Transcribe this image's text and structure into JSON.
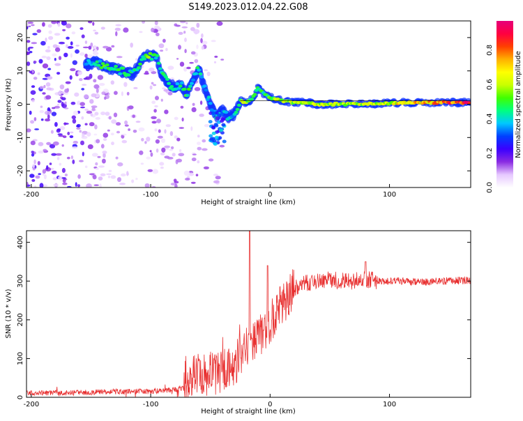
{
  "title": "S149.2023.012.04.22.G08",
  "chart_data": [
    {
      "type": "heatmap",
      "title": "",
      "xlabel": "Height of straight line (km)",
      "ylabel": "Frequency (Hz)",
      "xlim": [
        -204,
        168
      ],
      "ylim": [
        -25,
        25
      ],
      "x_ticks": [
        "-200",
        "-100",
        "0",
        "100"
      ],
      "y_ticks": [
        "20",
        "10",
        "0",
        "-10",
        "-20"
      ],
      "colorbar": {
        "label": "Normalized spectral amplitude",
        "range": [
          0,
          0.97
        ],
        "ticks": [
          "0.0",
          "0.2",
          "0.4",
          "0.6",
          "0.8"
        ],
        "colormap": [
          "#ffffff",
          "#e6c8ff",
          "#8a2be2",
          "#3a00ff",
          "#0040ff",
          "#00c8ff",
          "#00ff80",
          "#40ff00",
          "#c8ff00",
          "#ffff00",
          "#ffb000",
          "#ff4000",
          "#ff0040",
          "#e6007a"
        ]
      },
      "ridge": [
        {
          "x": -155,
          "y": 12,
          "a": 0.35
        },
        {
          "x": -145,
          "y": 12.5,
          "a": 0.45
        },
        {
          "x": -135,
          "y": 11,
          "a": 0.55
        },
        {
          "x": -125,
          "y": 10,
          "a": 0.5
        },
        {
          "x": -115,
          "y": 9,
          "a": 0.45
        },
        {
          "x": -105,
          "y": 14.5,
          "a": 0.55
        },
        {
          "x": -95,
          "y": 14.5,
          "a": 0.5
        },
        {
          "x": -92,
          "y": 10,
          "a": 0.45
        },
        {
          "x": -85,
          "y": 6,
          "a": 0.5
        },
        {
          "x": -80,
          "y": 5,
          "a": 0.5
        },
        {
          "x": -75,
          "y": 6,
          "a": 0.45
        },
        {
          "x": -70,
          "y": 3,
          "a": 0.5
        },
        {
          "x": -65,
          "y": 7,
          "a": 0.45
        },
        {
          "x": -60,
          "y": 11,
          "a": 0.45
        },
        {
          "x": -55,
          "y": 5,
          "a": 0.4
        },
        {
          "x": -50,
          "y": 0,
          "a": 0.4
        },
        {
          "x": -45,
          "y": -4,
          "a": 0.4
        },
        {
          "x": -40,
          "y": -2,
          "a": 0.4
        },
        {
          "x": -35,
          "y": -4,
          "a": 0.45
        },
        {
          "x": -30,
          "y": -3,
          "a": 0.4
        },
        {
          "x": -25,
          "y": 1,
          "a": 0.6
        },
        {
          "x": -20,
          "y": 0.5,
          "a": 0.65
        },
        {
          "x": -15,
          "y": 1.5,
          "a": 0.5
        },
        {
          "x": -10,
          "y": 5,
          "a": 0.45
        },
        {
          "x": -5,
          "y": 3,
          "a": 0.5
        },
        {
          "x": 0,
          "y": 2,
          "a": 0.55
        },
        {
          "x": 10,
          "y": 1,
          "a": 0.6
        },
        {
          "x": 20,
          "y": 0.5,
          "a": 0.6
        },
        {
          "x": 30,
          "y": 0.5,
          "a": 0.6
        },
        {
          "x": 40,
          "y": 0,
          "a": 0.62
        },
        {
          "x": 50,
          "y": 0,
          "a": 0.62
        },
        {
          "x": 60,
          "y": 0,
          "a": 0.62
        },
        {
          "x": 70,
          "y": 0,
          "a": 0.64
        },
        {
          "x": 80,
          "y": 0,
          "a": 0.65
        },
        {
          "x": 90,
          "y": 0.2,
          "a": 0.66
        },
        {
          "x": 100,
          "y": 0.3,
          "a": 0.68
        },
        {
          "x": 110,
          "y": 0.5,
          "a": 0.7
        },
        {
          "x": 120,
          "y": 0.5,
          "a": 0.72
        },
        {
          "x": 130,
          "y": 0.5,
          "a": 0.75
        },
        {
          "x": 140,
          "y": 0.5,
          "a": 0.8
        },
        {
          "x": 150,
          "y": 0.5,
          "a": 0.85
        },
        {
          "x": 160,
          "y": 0.5,
          "a": 0.9
        },
        {
          "x": 168,
          "y": 0.5,
          "a": 0.95
        }
      ]
    },
    {
      "type": "line",
      "title": "",
      "xlabel": "Height of straight line (km)",
      "ylabel": "SNR (10 * v/v)",
      "xlim": [
        -204,
        168
      ],
      "ylim": [
        0,
        430
      ],
      "x_ticks": [
        "-200",
        "-100",
        "0",
        "100"
      ],
      "y_ticks": [
        "0",
        "100",
        "200",
        "300",
        "400"
      ],
      "series": [
        {
          "color": "#e83030",
          "x": [
            -204,
            -180,
            -160,
            -140,
            -120,
            -100,
            -90,
            -80,
            -70,
            -65,
            -60,
            -55,
            -50,
            -45,
            -40,
            -35,
            -30,
            -25,
            -20,
            -18,
            -15,
            -10,
            -5,
            0,
            5,
            10,
            15,
            20,
            25,
            30,
            40,
            50,
            60,
            70,
            80,
            90,
            100,
            110,
            120,
            130,
            140,
            150,
            160,
            168
          ],
          "values": [
            10,
            12,
            12,
            14,
            15,
            15,
            18,
            20,
            25,
            60,
            70,
            55,
            65,
            60,
            70,
            75,
            80,
            110,
            130,
            120,
            140,
            160,
            170,
            190,
            220,
            240,
            260,
            280,
            290,
            295,
            300,
            305,
            300,
            300,
            305,
            300,
            300,
            300,
            298,
            298,
            300,
            300,
            302,
            302
          ]
        }
      ]
    }
  ]
}
